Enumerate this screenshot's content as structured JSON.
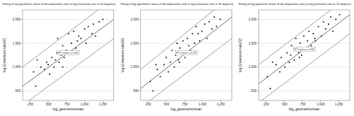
{
  "chart_data": [
    {
      "type": "scatter",
      "title": "Fitting of log (geometric mean of decomposition rate) to log (extension rate at 10 degrees)",
      "x_label": "log_geometricmean",
      "y_label": "log (Extension rate10)",
      "annotation": "R² Linear = 0.62",
      "color": "#3a3a3a",
      "grid": true,
      "marker": "circle",
      "xlim": [
        0.15,
        1.4
      ],
      "ylim": [
        0.3,
        2.2
      ],
      "xticks": [
        {
          "value": 0.25,
          "label": ".250"
        },
        {
          "value": 0.5,
          "label": ".500"
        },
        {
          "value": 0.75,
          "label": ".750"
        },
        {
          "value": 1,
          "label": "1.000"
        },
        {
          "value": 1.25,
          "label": "1.250"
        }
      ],
      "yticks": [
        {
          "value": 0.5,
          "label": ".500"
        },
        {
          "value": 1,
          "label": "1.000"
        },
        {
          "value": 1.5,
          "label": "1.500"
        },
        {
          "value": 2,
          "label": "2.000"
        }
      ],
      "x": [
        0.3,
        0.33,
        0.4,
        0.45,
        0.48,
        0.5,
        0.52,
        0.55,
        0.58,
        0.6,
        0.62,
        0.63,
        0.65,
        0.68,
        0.7,
        0.72,
        0.75,
        0.78,
        0.8,
        0.82,
        0.85,
        0.88,
        0.9,
        0.95,
        1.0,
        1.02,
        1.05,
        1.1,
        1.12,
        1.15,
        1.2,
        1.25,
        0.35,
        0.7,
        0.92
      ],
      "y": [
        0.9,
        0.6,
        1.0,
        0.95,
        1.1,
        1.05,
        0.85,
        1.2,
        1.0,
        1.15,
        1.3,
        1.6,
        1.1,
        1.25,
        1.45,
        1.2,
        1.35,
        1.7,
        1.3,
        1.5,
        1.75,
        1.4,
        1.55,
        1.6,
        1.8,
        1.5,
        1.85,
        1.7,
        1.9,
        1.65,
        1.95,
        2.0,
        1.15,
        1.0,
        1.65
      ],
      "lines": [
        {
          "x": [
            0.15,
            1.4
          ],
          "y": [
            0.6,
            2.0
          ]
        },
        {
          "x": [
            0.15,
            1.4
          ],
          "y": [
            1.0,
            2.45
          ]
        },
        {
          "x": [
            0.15,
            1.4
          ],
          "y": [
            0.2,
            1.6
          ]
        }
      ]
    },
    {
      "type": "scatter",
      "title": "Fitting of log (geometric mean of decomposition rate) to log (extension rate at 16 degrees)",
      "x_label": "log_geometricmean",
      "y_label": "log (Extension rate16)",
      "annotation": "R² Linear = 0.58",
      "color": "#3a3a3a",
      "grid": true,
      "marker": "circle",
      "xlim": [
        0.15,
        1.4
      ],
      "ylim": [
        0.3,
        2.2
      ],
      "xticks": [
        {
          "value": 0.25,
          "label": ".250"
        },
        {
          "value": 0.5,
          "label": ".500"
        },
        {
          "value": 0.75,
          "label": ".750"
        },
        {
          "value": 1,
          "label": "1.000"
        },
        {
          "value": 1.25,
          "label": "1.250"
        }
      ],
      "yticks": [
        {
          "value": 0.5,
          "label": ".500"
        },
        {
          "value": 1,
          "label": "1.000"
        },
        {
          "value": 1.5,
          "label": "1.500"
        },
        {
          "value": 2,
          "label": "2.000"
        }
      ],
      "x": [
        0.28,
        0.32,
        0.38,
        0.42,
        0.47,
        0.5,
        0.53,
        0.56,
        0.58,
        0.61,
        0.63,
        0.65,
        0.67,
        0.69,
        0.71,
        0.73,
        0.76,
        0.79,
        0.81,
        0.83,
        0.86,
        0.89,
        0.91,
        0.96,
        0.99,
        1.03,
        1.06,
        1.09,
        1.13,
        1.16,
        1.19,
        1.24,
        0.36,
        0.68,
        0.94
      ],
      "y": [
        0.7,
        0.5,
        0.95,
        0.8,
        1.05,
        1.2,
        0.9,
        1.1,
        1.35,
        1.0,
        1.25,
        1.5,
        1.15,
        1.4,
        1.3,
        1.55,
        1.2,
        1.6,
        1.45,
        1.35,
        1.7,
        1.5,
        1.85,
        1.55,
        1.75,
        1.9,
        1.6,
        1.95,
        1.8,
        2.05,
        1.85,
        2.0,
        1.05,
        1.1,
        1.7
      ],
      "lines": [
        {
          "x": [
            0.15,
            1.4
          ],
          "y": [
            0.55,
            2.05
          ]
        },
        {
          "x": [
            0.15,
            1.4
          ],
          "y": [
            0.95,
            2.5
          ]
        },
        {
          "x": [
            0.15,
            1.4
          ],
          "y": [
            0.15,
            1.6
          ]
        }
      ]
    },
    {
      "type": "scatter",
      "title": "Fitting of log (geometric mean of decomposition rate) to log (extension rate at 22 degrees)",
      "x_label": "log_geometricmean",
      "y_label": "log (Extension rate22)",
      "annotation": "R² Linear = 0.60",
      "color": "#3a3a3a",
      "grid": true,
      "marker": "circle",
      "xlim": [
        0.15,
        1.4
      ],
      "ylim": [
        0.3,
        2.2
      ],
      "xticks": [
        {
          "value": 0.25,
          "label": ".250"
        },
        {
          "value": 0.5,
          "label": ".500"
        },
        {
          "value": 0.75,
          "label": ".750"
        },
        {
          "value": 1,
          "label": "1.000"
        },
        {
          "value": 1.25,
          "label": "1.250"
        }
      ],
      "yticks": [
        {
          "value": 0.5,
          "label": ".500"
        },
        {
          "value": 1,
          "label": "1.000"
        },
        {
          "value": 1.5,
          "label": "1.500"
        },
        {
          "value": 2,
          "label": "2.000"
        }
      ],
      "x": [
        0.27,
        0.31,
        0.39,
        0.44,
        0.46,
        0.51,
        0.54,
        0.57,
        0.59,
        0.6,
        0.64,
        0.66,
        0.66,
        0.7,
        0.72,
        0.74,
        0.77,
        0.8,
        0.82,
        0.84,
        0.87,
        0.9,
        0.92,
        0.97,
        1.01,
        1.04,
        1.07,
        1.11,
        1.14,
        1.17,
        1.21,
        1.26,
        0.34,
        0.71,
        0.93
      ],
      "y": [
        0.8,
        0.55,
        1.05,
        0.9,
        1.2,
        1.0,
        1.3,
        1.1,
        1.25,
        1.45,
        1.15,
        1.35,
        1.6,
        1.3,
        1.5,
        1.25,
        1.65,
        1.4,
        1.55,
        1.75,
        1.45,
        1.7,
        1.6,
        1.85,
        1.65,
        1.95,
        1.8,
        1.9,
        2.05,
        1.75,
        2.0,
        2.1,
        1.1,
        1.2,
        1.55
      ],
      "lines": [
        {
          "x": [
            0.15,
            1.4
          ],
          "y": [
            0.65,
            2.1
          ]
        },
        {
          "x": [
            0.15,
            1.4
          ],
          "y": [
            1.05,
            2.5
          ]
        },
        {
          "x": [
            0.15,
            1.4
          ],
          "y": [
            0.25,
            1.7
          ]
        }
      ]
    }
  ]
}
